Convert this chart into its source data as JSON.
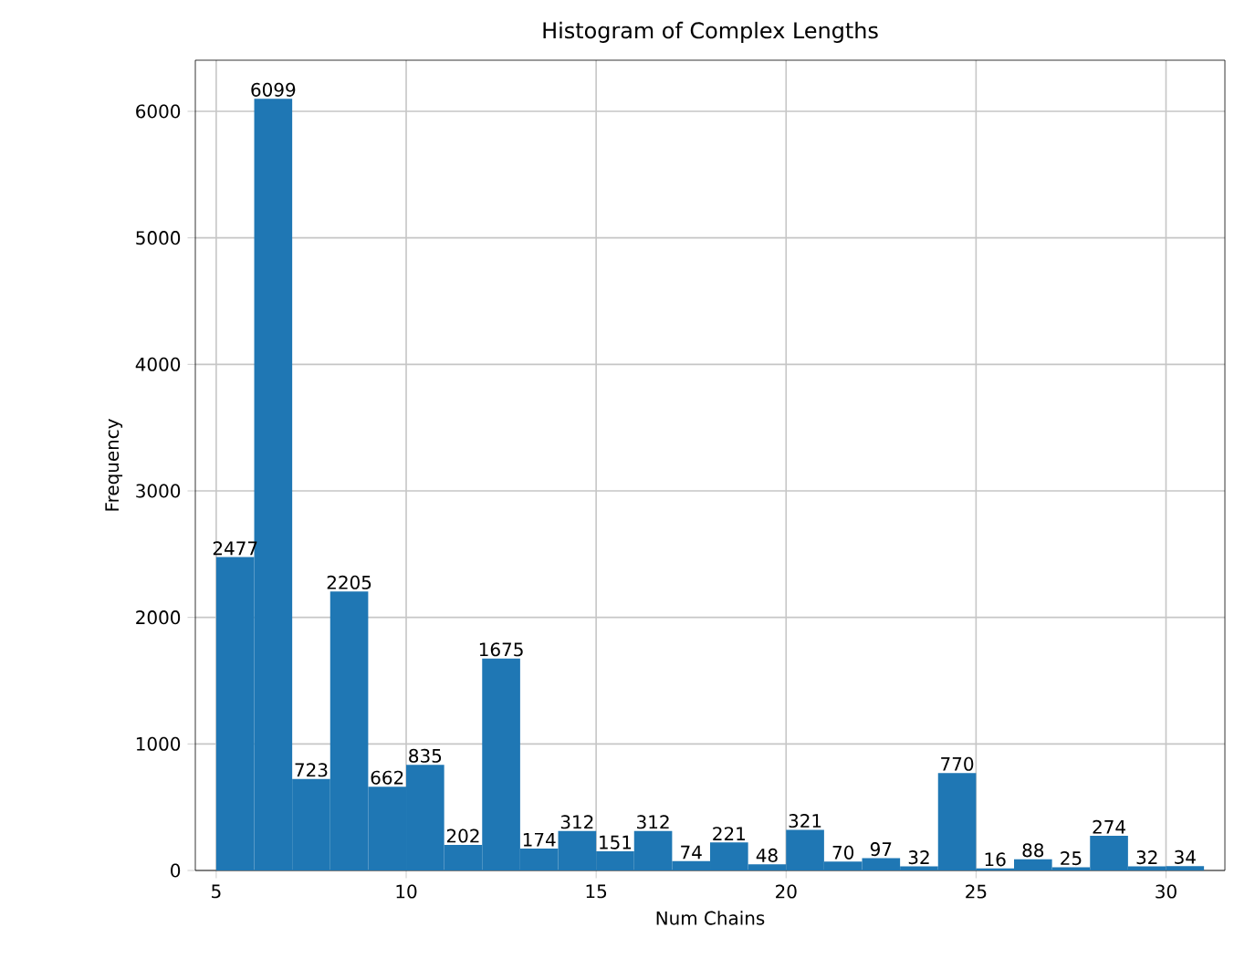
{
  "chart_data": {
    "type": "histogram",
    "title": "Histogram of Complex Lengths",
    "xlabel": "Num Chains",
    "ylabel": "Frequency",
    "bins": [
      5,
      6,
      7,
      8,
      9,
      10,
      11,
      12,
      13,
      14,
      15,
      16,
      17,
      18,
      19,
      20,
      21,
      22,
      23,
      24,
      25,
      26,
      27,
      28,
      29,
      30,
      31
    ],
    "values": [
      2477,
      6099,
      723,
      2205,
      662,
      835,
      202,
      1675,
      174,
      312,
      151,
      312,
      74,
      221,
      48,
      321,
      70,
      97,
      32,
      770,
      16,
      88,
      25,
      274,
      32,
      34
    ],
    "color": "#1f77b4",
    "data_labels": true,
    "grid": true,
    "xlim": [
      4.45,
      31.55
    ],
    "xticks": [
      5,
      10,
      15,
      20,
      25,
      30
    ],
    "ylim": [
      0,
      6404
    ],
    "yticks": [
      0,
      1000,
      2000,
      3000,
      4000,
      5000,
      6000
    ]
  }
}
